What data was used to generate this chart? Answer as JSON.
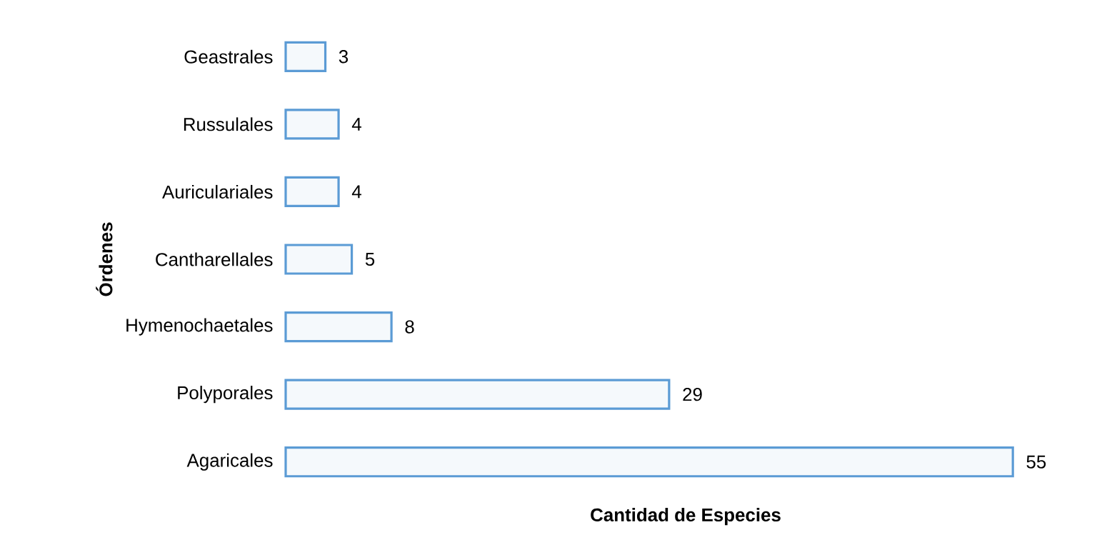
{
  "chart_data": {
    "type": "bar",
    "orientation": "horizontal",
    "xlabel": "Cantidad de Especies",
    "ylabel": "Órdenes",
    "categories": [
      "Geastrales",
      "Russulales",
      "Auriculariales",
      "Cantharellales",
      "Hymenochaetales",
      "Polyporales",
      "Agaricales"
    ],
    "values": [
      3,
      4,
      4,
      5,
      8,
      29,
      55
    ],
    "color": "#5b9bd5",
    "data_labels": true,
    "tick_labels": "y"
  }
}
